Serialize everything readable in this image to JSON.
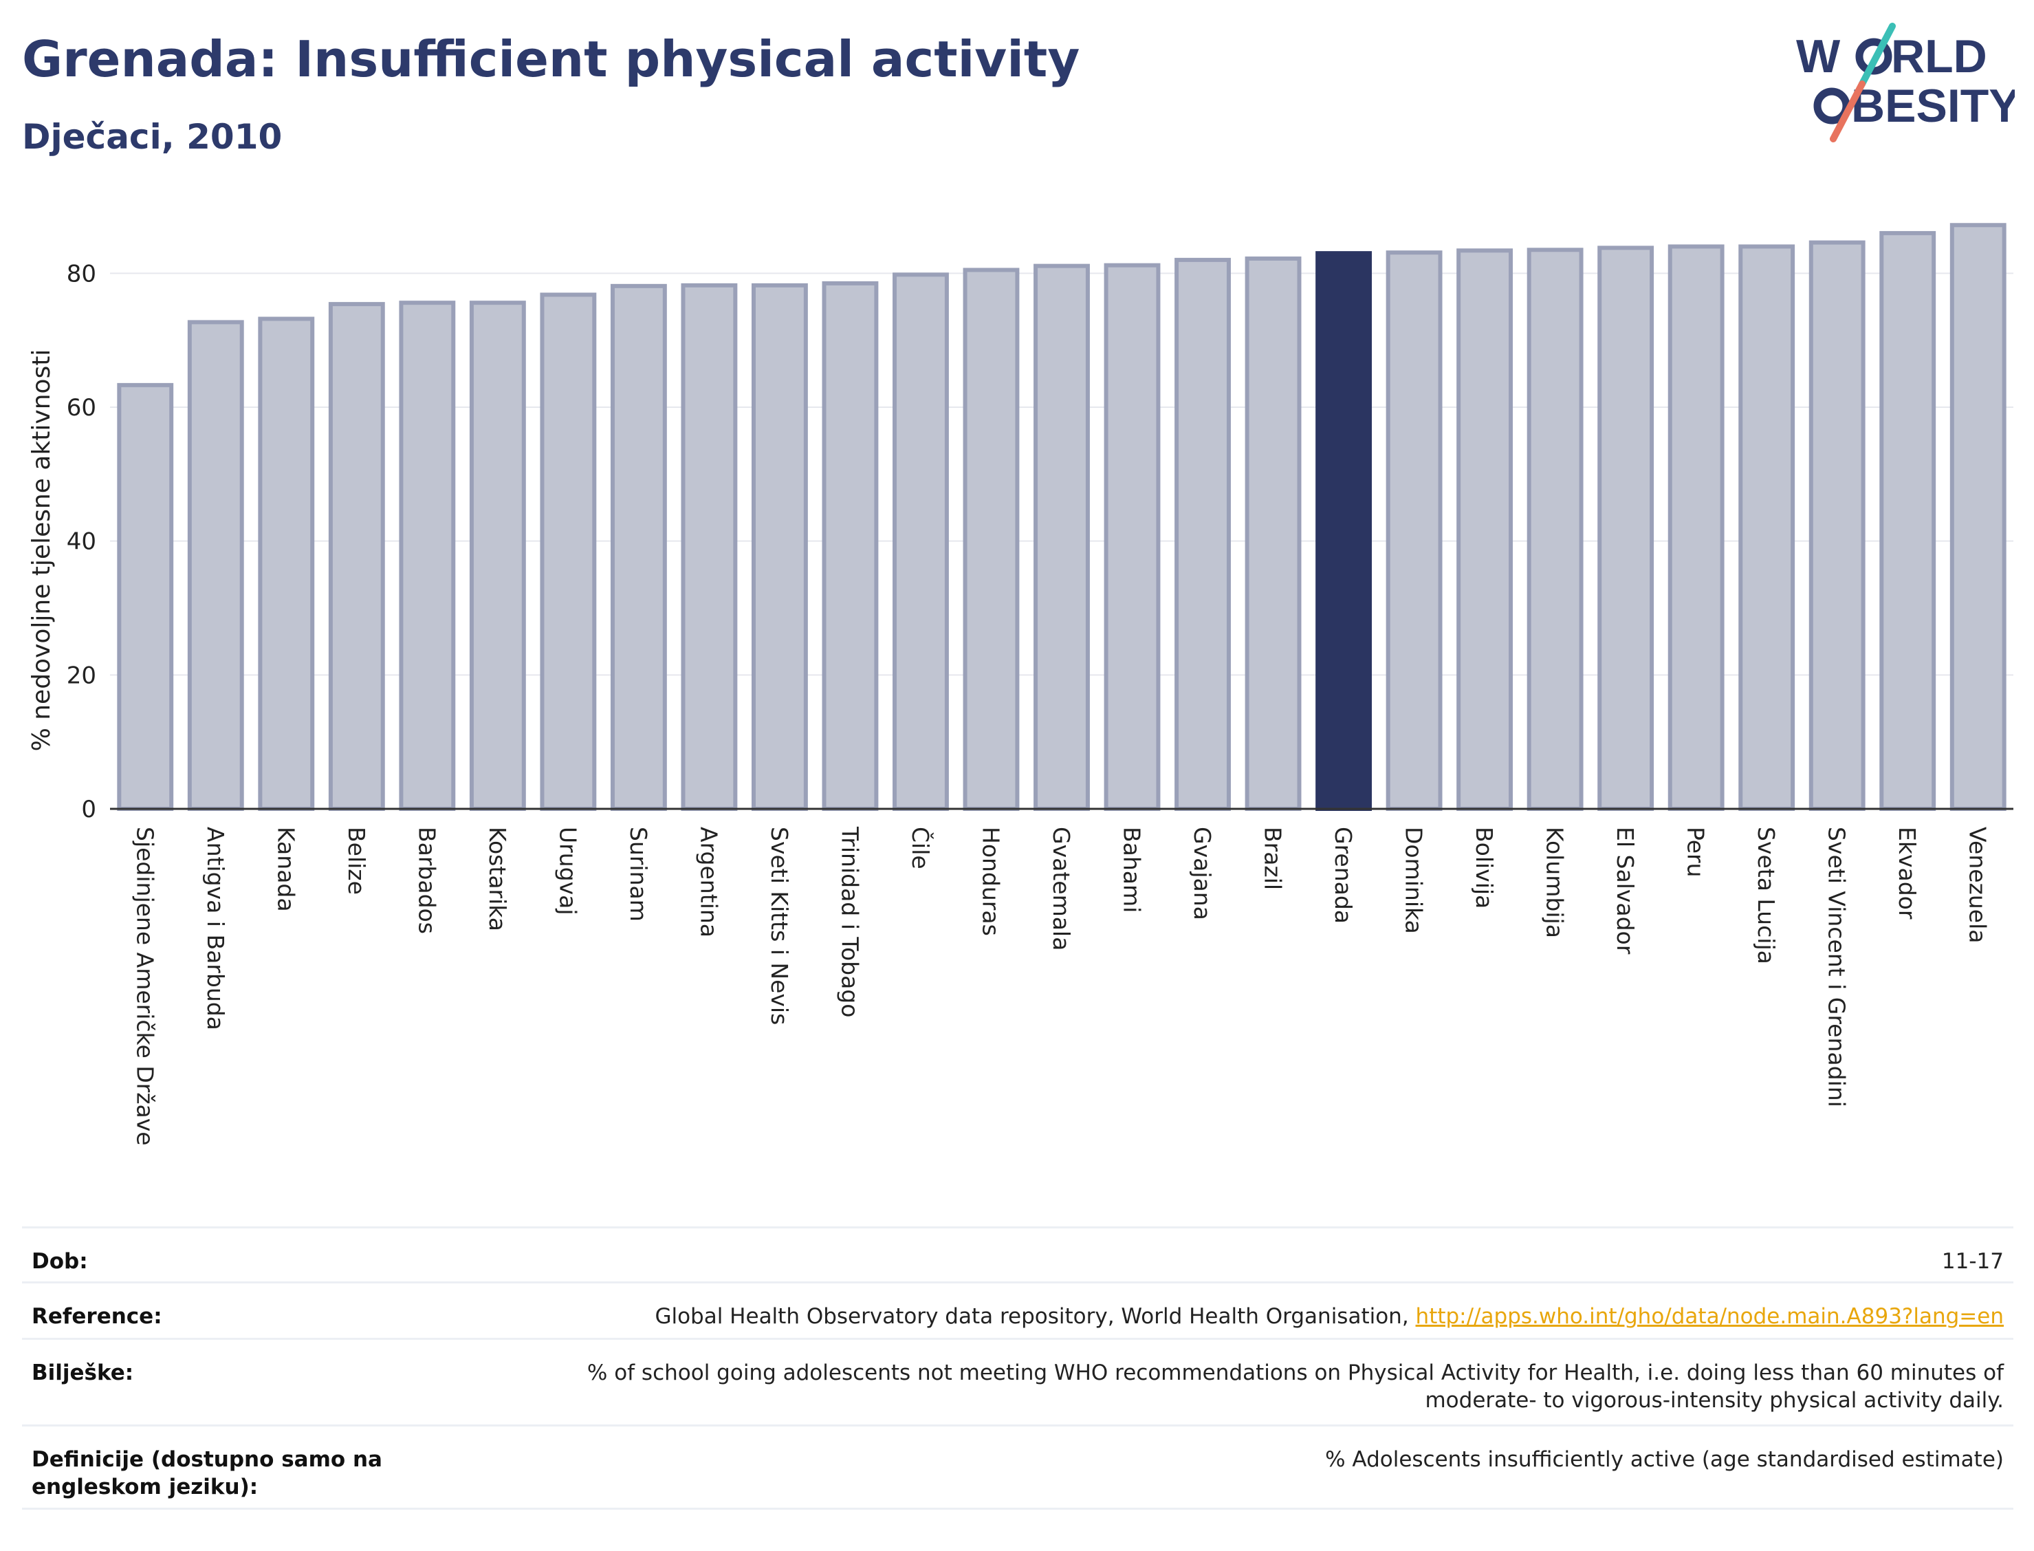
{
  "header": {
    "title": "Grenada: Insufficient physical activity",
    "subtitle": "Dječaci, 2010"
  },
  "logo": {
    "line1": "W",
    "line1b": "RLD",
    "line2": "BESITY",
    "colors": {
      "text": "#2d3a6b",
      "slash_top": "#3bbfb6",
      "slash_bottom": "#e8735e"
    }
  },
  "colors": {
    "bar_default_fill": "#c0c4d1",
    "bar_default_stroke": "#9aa0b8",
    "bar_highlight": "#2b3561",
    "grid": "#e6e8ee",
    "axis": "#333333"
  },
  "chart_data": {
    "type": "bar",
    "title": "Grenada: Insufficient physical activity",
    "subtitle": "Dječaci, 2010",
    "xlabel": "",
    "ylabel": "% nedovoljne tjelesne aktivnosti",
    "ylim": [
      0,
      90
    ],
    "yticks": [
      0,
      20,
      40,
      60,
      80
    ],
    "grid": true,
    "highlight": "Grenada",
    "categories": [
      "Sjedinjene Američke Države",
      "Antigva i Barbuda",
      "Kanada",
      "Belize",
      "Barbados",
      "Kostarika",
      "Urugvaj",
      "Surinam",
      "Argentina",
      "Sveti Kitts i Nevis",
      "Trinidad i Tobago",
      "Čile",
      "Honduras",
      "Gvatemala",
      "Bahami",
      "Gvajana",
      "Brazil",
      "Grenada",
      "Dominika",
      "Bolivija",
      "Kolumbija",
      "El Salvador",
      "Peru",
      "Sveta Lucija",
      "Sveti Vincent i Grenadini",
      "Ekvador",
      "Venezuela"
    ],
    "values": [
      63.3,
      72.7,
      73.2,
      75.4,
      75.6,
      75.6,
      76.8,
      78.1,
      78.2,
      78.2,
      78.5,
      79.8,
      80.5,
      81.1,
      81.2,
      82.0,
      82.2,
      83.0,
      83.1,
      83.4,
      83.5,
      83.8,
      84.0,
      84.0,
      84.6,
      86.0,
      87.2
    ]
  },
  "meta": {
    "rows": [
      {
        "label": "Dob:",
        "value": "11-17"
      },
      {
        "label": "Reference:",
        "value": "Global Health Observatory data repository, World Health Organisation, ",
        "link": "http://apps.who.int/gho/data/node.main.A893?lang=en"
      },
      {
        "label": "Bilješke:",
        "value": "% of school going adolescents not meeting WHO recommendations on Physical Activity for Health, i.e. doing less than 60 minutes of moderate- to vigorous-intensity physical activity daily."
      },
      {
        "label": "Definicije (dostupno samo na engleskom jeziku):",
        "value": "% Adolescents insufficiently active (age standardised estimate)"
      }
    ]
  }
}
